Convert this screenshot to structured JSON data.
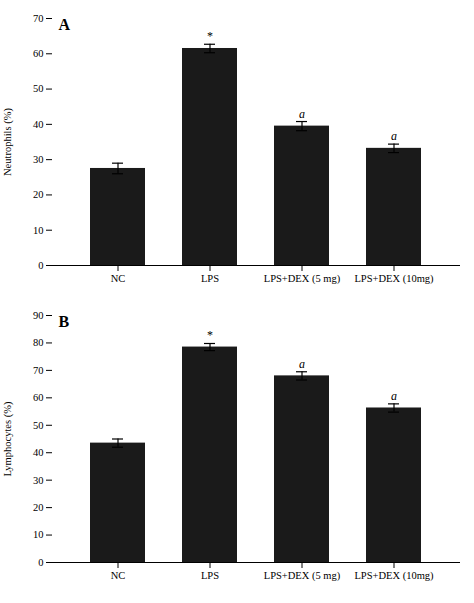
{
  "chart_data": [
    {
      "type": "bar",
      "title": "A",
      "categories": [
        "NC",
        "LPS",
        "LPS+DEX (5 mg)",
        "LPS+DEX (10mg)"
      ],
      "values": [
        27.5,
        61.5,
        39.5,
        33.2
      ],
      "errors": [
        1.5,
        1.2,
        1.3,
        1.2
      ],
      "annotations": [
        null,
        "*",
        "a",
        "a"
      ],
      "ylabel": "Neutrophils (%)",
      "ylim": [
        0,
        70
      ],
      "yticks": [
        0,
        10,
        20,
        30,
        40,
        50,
        60,
        70
      ],
      "color": "#1a1a1a",
      "grid": false
    },
    {
      "type": "bar",
      "title": "B",
      "categories": [
        "NC",
        "LPS",
        "LPS+DEX (5 mg)",
        "LPS+DEX (10mg)"
      ],
      "values": [
        43.5,
        78.5,
        68.0,
        56.3
      ],
      "errors": [
        1.5,
        1.3,
        1.5,
        1.5
      ],
      "annotations": [
        null,
        "*",
        "a",
        "a"
      ],
      "ylabel": "Lymphocytes (%)",
      "ylim": [
        0,
        90
      ],
      "yticks": [
        0,
        10,
        20,
        30,
        40,
        50,
        60,
        70,
        80,
        90
      ],
      "color": "#1a1a1a",
      "grid": false
    }
  ]
}
